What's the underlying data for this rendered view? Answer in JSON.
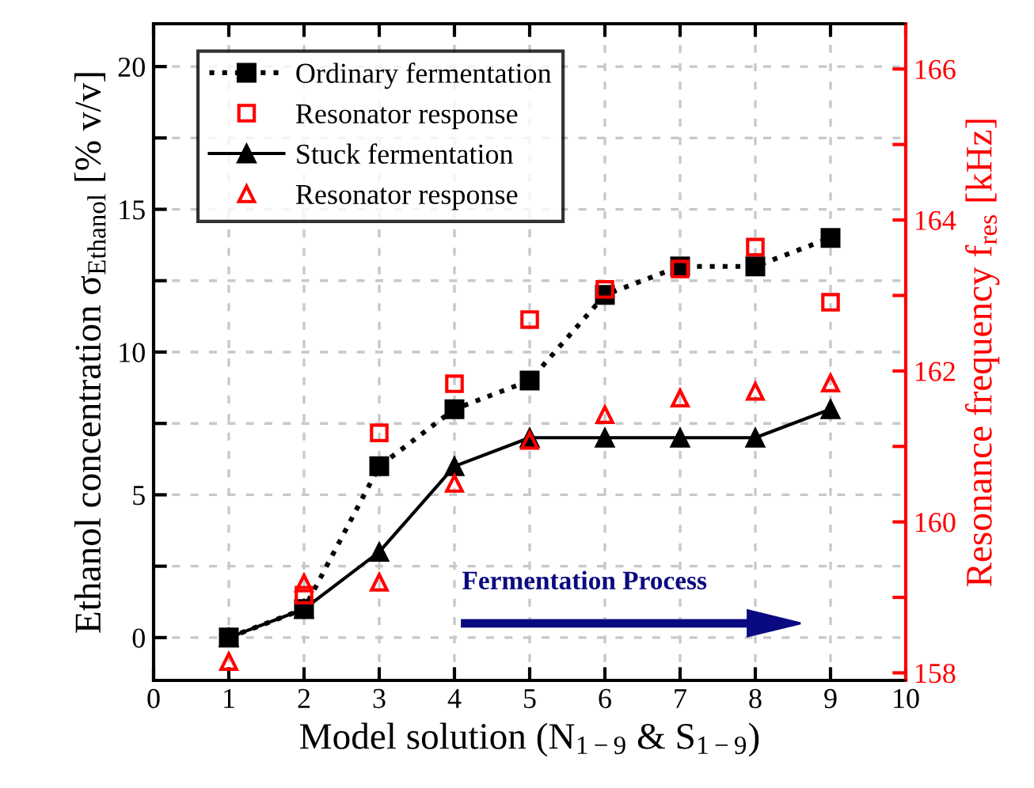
{
  "chart_data": {
    "type": "line",
    "xlabel": "Model solution (N$_{1−9}$ & S$_{1−9}$)",
    "ylabel": "Ethanol concentration σ$_{Ethanol}$ [% v/v]",
    "y2label": "Resonance frequency f$_{res}$ [kHz]",
    "x": [
      1,
      2,
      3,
      4,
      5,
      6,
      7,
      8,
      9
    ],
    "series": [
      {
        "name": "Ordinary fermentation",
        "color": "#000000",
        "marker": "square",
        "line_style": "dotted",
        "values": [
          0,
          1,
          6,
          8,
          9,
          12,
          13,
          13,
          14
        ]
      },
      {
        "name": "Resonator response",
        "type": "scatter",
        "color": "#ff0000",
        "marker": "square",
        "axis": "y2",
        "values": [
          null,
          159.03,
          161.18,
          161.83,
          162.68,
          163.08,
          163.35,
          163.64,
          162.91
        ]
      },
      {
        "name": "Stuck fermentation",
        "color": "#000000",
        "marker": "triangle",
        "line_style": "solid",
        "values": [
          0,
          1,
          3,
          6,
          7,
          7,
          7,
          7,
          8
        ]
      },
      {
        "name": "Resonator response",
        "type": "scatter",
        "color": "#ff0000",
        "marker": "triangle",
        "axis": "y2",
        "values": [
          158.15,
          159.19,
          159.2,
          160.51,
          161.08,
          161.42,
          161.64,
          161.73,
          161.84
        ]
      }
    ],
    "xlim": [
      0,
      10
    ],
    "xticks": [
      0,
      1,
      2,
      3,
      4,
      5,
      6,
      7,
      8,
      9,
      10
    ],
    "ylim": [
      -1.5,
      21.5
    ],
    "yticks": [
      0,
      {
        "value": 2.5,
        "label": null
      },
      5,
      {
        "value": 7.5,
        "label": null
      },
      10,
      {
        "value": 12.5,
        "label": null
      },
      15,
      {
        "value": 17.5,
        "label": null
      },
      20
    ],
    "y2lim": [
      157.9,
      166.6
    ],
    "y2ticks": [
      158,
      {
        "value": 159,
        "label": null
      },
      160,
      {
        "value": 161,
        "label": null
      },
      162,
      {
        "value": 163,
        "label": null
      },
      164,
      {
        "value": 165,
        "label": null
      },
      166
    ],
    "grid": true,
    "legend": "top left",
    "annotations": [
      "Fermentation Process"
    ]
  }
}
